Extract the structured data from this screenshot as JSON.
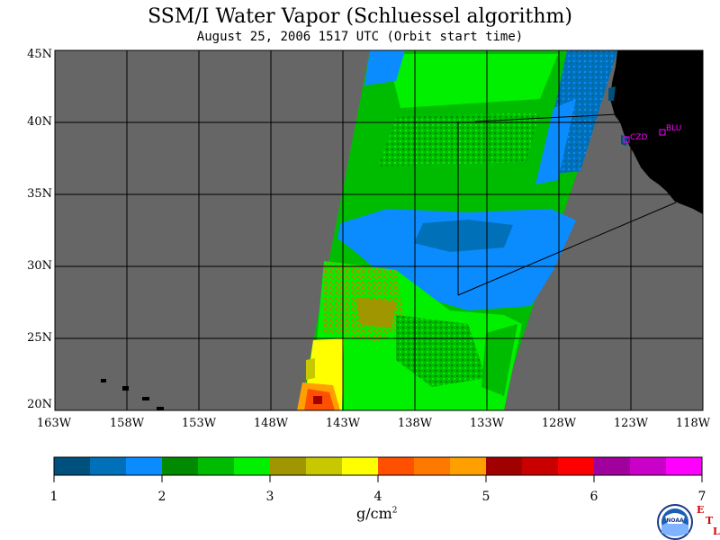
{
  "title": "SSM/I Water Vapor (Schluessel algorithm)",
  "subtitle": "August 25, 2006  1517 UTC  (Orbit start time)",
  "latitude_labels": [
    "45N",
    "40N",
    "35N",
    "30N",
    "25N",
    "20N"
  ],
  "longitude_labels": [
    "163W",
    "158W",
    "153W",
    "148W",
    "143W",
    "138W",
    "133W",
    "128W",
    "123W",
    "118W"
  ],
  "stations": [
    {
      "code": "CZD",
      "lat": 38.6,
      "lon": -123.2
    },
    {
      "code": "BLU",
      "lat": 39.3,
      "lon": -120.7
    }
  ],
  "colorbar": {
    "ticks": [
      "1",
      "2",
      "3",
      "4",
      "5",
      "6",
      "7"
    ],
    "units": "g/cm",
    "units_power": "2",
    "colors": [
      "#00507e",
      "#0070b8",
      "#0a8cff",
      "#008a00",
      "#00bc00",
      "#00f000",
      "#a09600",
      "#c8c800",
      "#ffff00",
      "#ff5000",
      "#ff7800",
      "#ffa000",
      "#a00000",
      "#c80000",
      "#ff0000",
      "#a0009c",
      "#c800c8",
      "#ff00ff"
    ]
  },
  "colors": {
    "no_data": "#666666",
    "land": "#000000",
    "grid": "#000000",
    "station": "#ff00ff"
  },
  "logo": {
    "text": "NOAA",
    "etl": [
      "E",
      "T",
      "L"
    ]
  }
}
